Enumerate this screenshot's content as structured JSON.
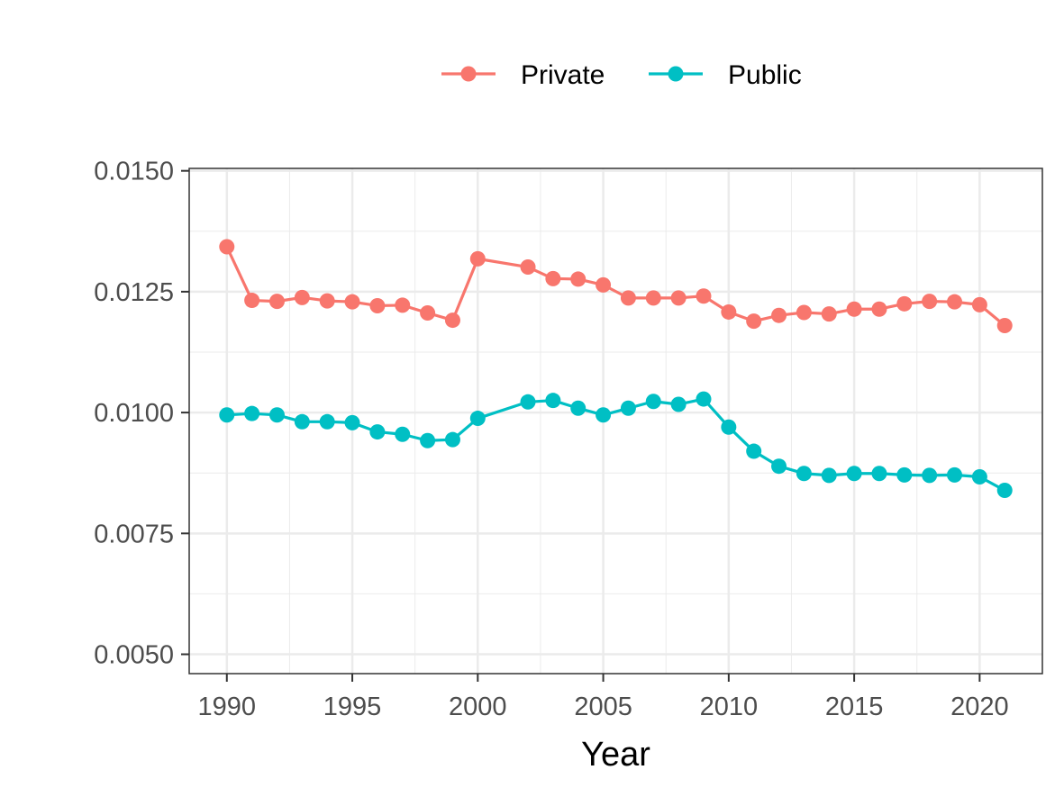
{
  "chart_data": {
    "type": "line",
    "xlabel": "Year",
    "ylabel": "",
    "xlim": [
      1988.5,
      2022.5
    ],
    "ylim": [
      0.0046,
      0.01505
    ],
    "x_ticks": [
      1990,
      1995,
      2000,
      2005,
      2010,
      2015,
      2020
    ],
    "x_tick_labels": [
      "1990",
      "1995",
      "2000",
      "2005",
      "2010",
      "2015",
      "2020"
    ],
    "y_ticks": [
      0.005,
      0.0075,
      0.01,
      0.0125,
      0.015
    ],
    "y_tick_labels": [
      "0.0050",
      "0.0075",
      "0.0100",
      "0.0125",
      "0.0150"
    ],
    "grid": true,
    "legend_position": "top",
    "series": [
      {
        "name": "Private",
        "color": "#F8766D",
        "x": [
          1990,
          1991,
          1992,
          1993,
          1994,
          1995,
          1996,
          1997,
          1998,
          1999,
          2000,
          2002,
          2003,
          2004,
          2005,
          2006,
          2007,
          2008,
          2009,
          2010,
          2011,
          2012,
          2013,
          2014,
          2015,
          2016,
          2017,
          2018,
          2019,
          2020,
          2021
        ],
        "values": [
          0.01343,
          0.01232,
          0.0123,
          0.01238,
          0.01231,
          0.01229,
          0.01221,
          0.01222,
          0.01206,
          0.01191,
          0.01318,
          0.01301,
          0.01277,
          0.01276,
          0.01264,
          0.01237,
          0.01237,
          0.01237,
          0.01241,
          0.01208,
          0.01189,
          0.01201,
          0.01207,
          0.01204,
          0.01214,
          0.01214,
          0.01225,
          0.0123,
          0.01229,
          0.01223,
          0.0118
        ]
      },
      {
        "name": "Public",
        "color": "#00BFC4",
        "x": [
          1990,
          1991,
          1992,
          1993,
          1994,
          1995,
          1996,
          1997,
          1998,
          1999,
          2000,
          2002,
          2003,
          2004,
          2005,
          2006,
          2007,
          2008,
          2009,
          2010,
          2011,
          2012,
          2013,
          2014,
          2015,
          2016,
          2017,
          2018,
          2019,
          2020,
          2021
        ],
        "values": [
          0.00995,
          0.00998,
          0.00995,
          0.00981,
          0.00981,
          0.00979,
          0.0096,
          0.00955,
          0.00942,
          0.00944,
          0.00988,
          0.01022,
          0.01025,
          0.01009,
          0.00995,
          0.01009,
          0.01023,
          0.01017,
          0.01028,
          0.0097,
          0.0092,
          0.00889,
          0.00874,
          0.0087,
          0.00874,
          0.00874,
          0.00871,
          0.0087,
          0.00871,
          0.00867,
          0.00839
        ]
      }
    ]
  }
}
